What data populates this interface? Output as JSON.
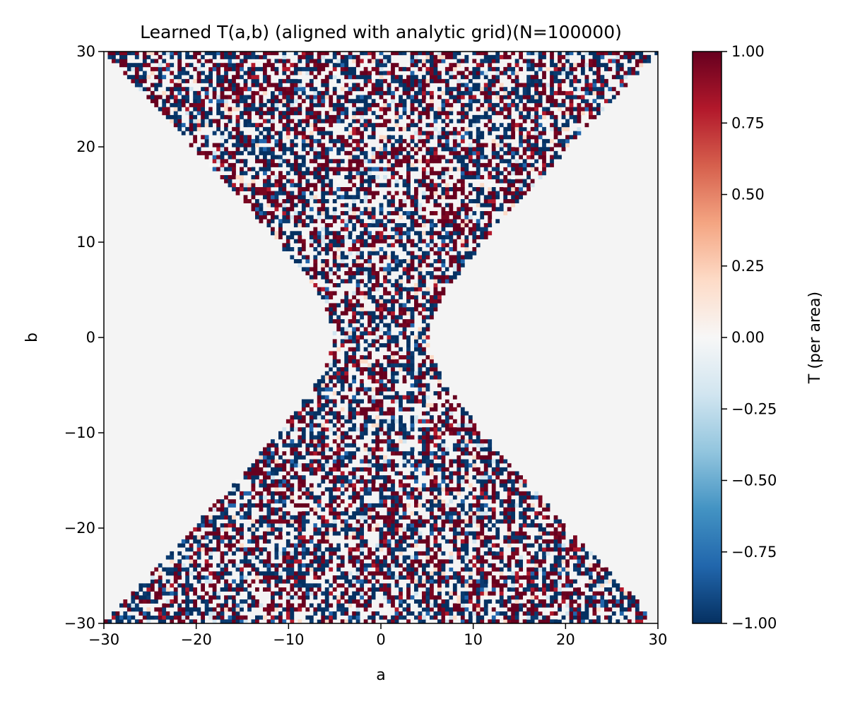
{
  "chart_data": {
    "type": "heatmap",
    "title": "Learned T(a,b) (aligned with analytic grid)(N=100000)",
    "xlabel": "a",
    "ylabel": "b",
    "xlim": [
      -30,
      30
    ],
    "ylim": [
      -30,
      30
    ],
    "x_ticks": [
      -30,
      -20,
      -10,
      0,
      10,
      20,
      30
    ],
    "x_tick_labels": [
      "−30",
      "−20",
      "−10",
      "0",
      "10",
      "20",
      "30"
    ],
    "y_ticks": [
      -30,
      -20,
      -10,
      0,
      10,
      20,
      30
    ],
    "y_tick_labels": [
      "−30",
      "−20",
      "−10",
      "0",
      "10",
      "20",
      "30"
    ],
    "grid": false,
    "background_value_color": "#f4f4f4",
    "support_region": {
      "description": "hyperbolic band |b| >= sqrt(a^2 * 0.93 + 27) approximately; values outside are empty",
      "half_width_at_b0": 5.2,
      "half_width_at_b30": 30
    },
    "value_distribution": "random values near ±1 with some near 0 inside support region",
    "n_samples": 100000,
    "colorbar": {
      "label": "T (per area)",
      "vmin": -1.0,
      "vmax": 1.0,
      "colormap": "RdBu_r",
      "ticks": [
        1.0,
        0.75,
        0.5,
        0.25,
        0.0,
        -0.25,
        -0.5,
        -0.75,
        -1.0
      ],
      "tick_labels": [
        "1.00",
        "0.75",
        "0.50",
        "0.25",
        "0.00",
        "−0.25",
        "−0.50",
        "−0.75",
        "−1.00"
      ],
      "colors": [
        "#67001f",
        "#b2182b",
        "#d6604d",
        "#f4a582",
        "#fddbc7",
        "#f7f7f7",
        "#d1e5f0",
        "#92c5de",
        "#4393c3",
        "#2166ac",
        "#053061"
      ]
    }
  }
}
